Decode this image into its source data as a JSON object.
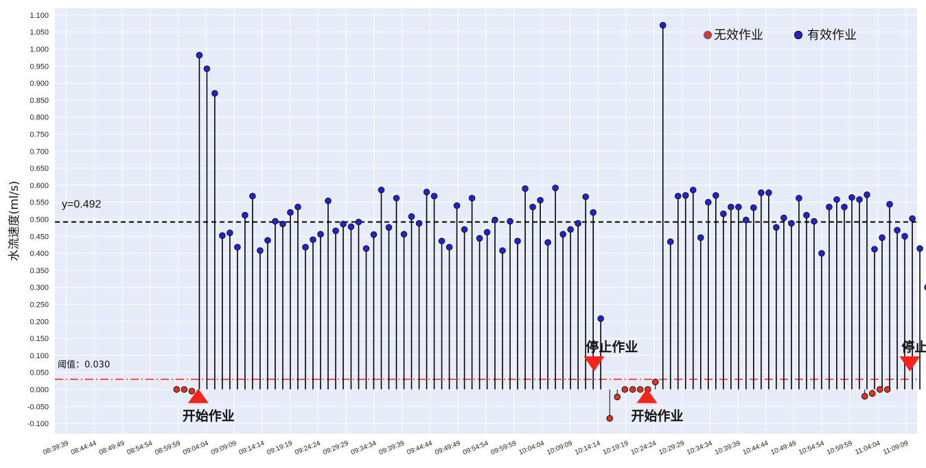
{
  "chart_data": {
    "type": "stem",
    "ylabel": "水流速度(ml/s)",
    "ylim": [
      -0.13,
      1.12
    ],
    "y_ticks": [
      "1.100",
      "1.050",
      "1.000",
      "0.950",
      "0.900",
      "0.850",
      "0.800",
      "0.750",
      "0.700",
      "0.650",
      "0.600",
      "0.550",
      "0.500",
      "0.450",
      "0.400",
      "0.350",
      "0.300",
      "0.250",
      "0.200",
      "0.150",
      "0.100",
      "0.050",
      "0.000",
      "-0.050",
      "-0.100"
    ],
    "x_ticks": [
      "08:39:39",
      "08:44:44",
      "08:49:49",
      "08:54:54",
      "08:59:59",
      "09:04:04",
      "09:09:09",
      "09:14:14",
      "09:19:19",
      "09:24:24",
      "09:29:29",
      "09:34:34",
      "09:39:39",
      "09:44:44",
      "09:49:49",
      "09:54:54",
      "09:59:59",
      "10:04:04",
      "10:09:09",
      "10:14:14",
      "10:19:19",
      "10:24:24",
      "10:29:29",
      "10:34:34",
      "10:39:39",
      "10:44:44",
      "10:49:49",
      "10:54:54",
      "10:59:59",
      "11:04:04",
      "11:09:09"
    ],
    "grid": true,
    "legend_position": "top-right",
    "series": [
      {
        "name": "无效作业",
        "color": "#e8321e",
        "points": [
          [
            3.95,
            0.0
          ],
          [
            4.22,
            0.0
          ],
          [
            4.49,
            -0.005
          ],
          [
            19.42,
            -0.085
          ],
          [
            19.69,
            -0.022
          ],
          [
            19.96,
            0.0
          ],
          [
            20.24,
            0.0
          ],
          [
            20.51,
            0.0
          ],
          [
            20.78,
            0.0
          ],
          [
            21.05,
            0.022
          ],
          [
            28.53,
            -0.02
          ],
          [
            28.8,
            -0.012
          ],
          [
            29.07,
            0.0
          ],
          [
            29.34,
            0.0
          ]
        ]
      },
      {
        "name": "有效作业",
        "color": "#1f22d8",
        "points": [
          [
            4.76,
            0.982
          ],
          [
            5.03,
            0.942
          ],
          [
            5.31,
            0.87
          ],
          [
            5.58,
            0.452
          ],
          [
            5.85,
            0.46
          ],
          [
            6.12,
            0.418
          ],
          [
            6.39,
            0.512
          ],
          [
            6.66,
            0.568
          ],
          [
            6.93,
            0.408
          ],
          [
            7.2,
            0.438
          ],
          [
            7.47,
            0.494
          ],
          [
            7.74,
            0.486
          ],
          [
            8.01,
            0.52
          ],
          [
            8.28,
            0.536
          ],
          [
            8.55,
            0.418
          ],
          [
            8.82,
            0.44
          ],
          [
            9.09,
            0.456
          ],
          [
            9.36,
            0.554
          ],
          [
            9.63,
            0.466
          ],
          [
            9.9,
            0.486
          ],
          [
            10.18,
            0.478
          ],
          [
            10.45,
            0.492
          ],
          [
            10.72,
            0.414
          ],
          [
            10.99,
            0.455
          ],
          [
            11.26,
            0.586
          ],
          [
            11.53,
            0.476
          ],
          [
            11.8,
            0.562
          ],
          [
            12.07,
            0.456
          ],
          [
            12.34,
            0.508
          ],
          [
            12.61,
            0.488
          ],
          [
            12.88,
            0.58
          ],
          [
            13.15,
            0.568
          ],
          [
            13.42,
            0.436
          ],
          [
            13.69,
            0.418
          ],
          [
            13.96,
            0.54
          ],
          [
            14.23,
            0.47
          ],
          [
            14.5,
            0.562
          ],
          [
            14.77,
            0.444
          ],
          [
            15.04,
            0.462
          ],
          [
            15.32,
            0.498
          ],
          [
            15.59,
            0.408
          ],
          [
            15.86,
            0.494
          ],
          [
            16.13,
            0.436
          ],
          [
            16.4,
            0.59
          ],
          [
            16.67,
            0.536
          ],
          [
            16.94,
            0.556
          ],
          [
            17.21,
            0.432
          ],
          [
            17.48,
            0.592
          ],
          [
            17.75,
            0.456
          ],
          [
            18.02,
            0.47
          ],
          [
            18.29,
            0.488
          ],
          [
            18.56,
            0.566
          ],
          [
            18.83,
            0.52
          ],
          [
            19.1,
            0.208
          ],
          [
            21.32,
            1.07
          ],
          [
            21.59,
            0.434
          ],
          [
            21.86,
            0.568
          ],
          [
            22.13,
            0.57
          ],
          [
            22.4,
            0.586
          ],
          [
            22.67,
            0.446
          ],
          [
            22.94,
            0.55
          ],
          [
            23.21,
            0.57
          ],
          [
            23.48,
            0.516
          ],
          [
            23.75,
            0.536
          ],
          [
            24.02,
            0.536
          ],
          [
            24.29,
            0.498
          ],
          [
            24.56,
            0.534
          ],
          [
            24.83,
            0.578
          ],
          [
            25.1,
            0.578
          ],
          [
            25.37,
            0.476
          ],
          [
            25.64,
            0.504
          ],
          [
            25.91,
            0.488
          ],
          [
            26.18,
            0.562
          ],
          [
            26.45,
            0.512
          ],
          [
            26.72,
            0.494
          ],
          [
            26.99,
            0.4
          ],
          [
            27.26,
            0.536
          ],
          [
            27.53,
            0.558
          ],
          [
            27.8,
            0.536
          ],
          [
            28.07,
            0.564
          ],
          [
            28.34,
            0.558
          ],
          [
            28.61,
            0.572
          ],
          [
            28.88,
            0.412
          ],
          [
            29.15,
            0.446
          ],
          [
            29.42,
            0.544
          ],
          [
            29.69,
            0.468
          ],
          [
            29.96,
            0.45
          ],
          [
            30.23,
            0.502
          ],
          [
            30.5,
            0.414
          ],
          [
            30.77,
            0.3
          ]
        ]
      }
    ],
    "reference_line": {
      "value": 0.492,
      "label": "y=0.492",
      "color": "#000000"
    },
    "threshold_line": {
      "value": 0.03,
      "label": "阈值：0.030",
      "color": "#e8321e"
    },
    "annotations": [
      {
        "text": "开始作业",
        "kind": "up",
        "x": 4.72,
        "y": -0.002
      },
      {
        "text": "停止作业",
        "kind": "down",
        "x": 18.86,
        "y": 0.057
      },
      {
        "text": "开始作业",
        "kind": "up",
        "x": 20.75,
        "y": -0.002
      },
      {
        "text": "停止作业",
        "kind": "down",
        "x": 30.14,
        "y": 0.057
      }
    ]
  }
}
